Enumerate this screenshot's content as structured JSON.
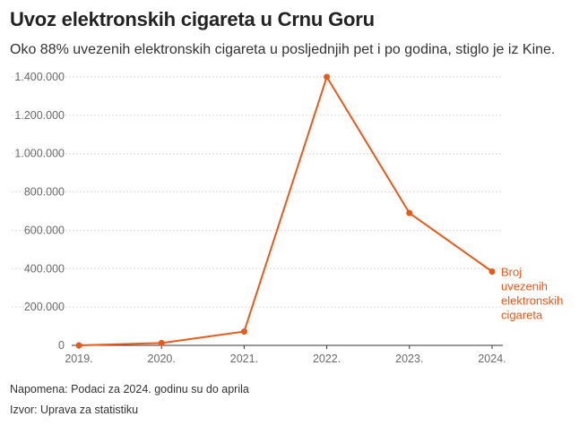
{
  "header": {
    "title": "Uvoz elektronskih cigareta u Crnu Goru",
    "subtitle": "Oko 88% uvezenih elektronskih cigareta u posljednjih pet i po godina, stiglo je iz Kine."
  },
  "footer": {
    "note": "Napomena: Podaci za 2024. godinu su do aprila",
    "source": "Izvor: Uprava za statistiku"
  },
  "chart_data": {
    "type": "line",
    "x": [
      "2019.",
      "2020.",
      "2021.",
      "2022.",
      "2023.",
      "2024."
    ],
    "series": [
      {
        "name": "Broj uvezenih elektronskih cigareta",
        "name_lines": [
          "Broj",
          "uvezenih",
          "elektronskih",
          "cigareta"
        ],
        "color": "#e8591a",
        "values": [
          0,
          12000,
          72000,
          1400000,
          690000,
          385000
        ]
      }
    ],
    "ylim": [
      0,
      1400000
    ],
    "yticks": [
      0,
      200000,
      400000,
      600000,
      800000,
      1000000,
      1200000,
      1400000
    ],
    "ytick_labels": [
      "0",
      "200.000",
      "400.000",
      "600.000",
      "800.000",
      "1.000.000",
      "1.200.000",
      "1.400.000"
    ],
    "grid": true,
    "xlabel": "",
    "ylabel": ""
  }
}
